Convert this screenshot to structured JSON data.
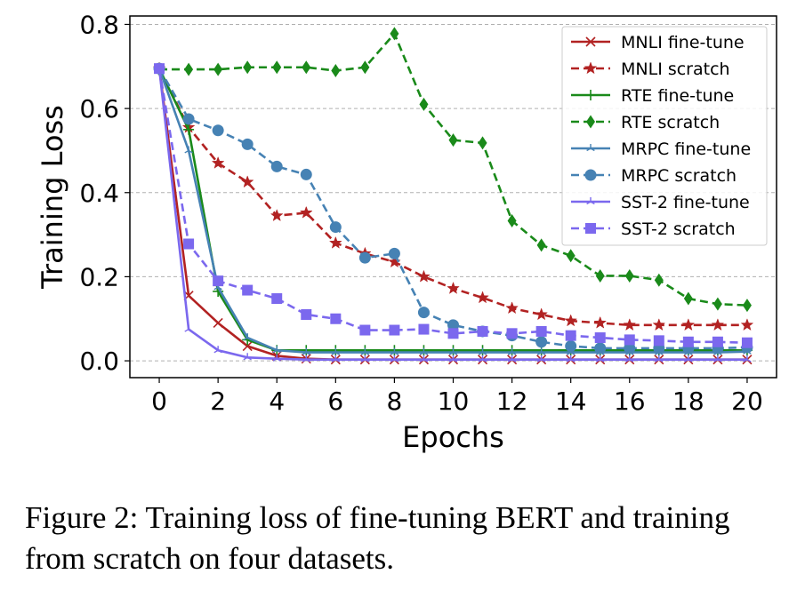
{
  "chart_data": {
    "type": "line",
    "title": "",
    "xlabel": "Epochs",
    "ylabel": "Training Loss",
    "xlim": [
      -1,
      21
    ],
    "ylim": [
      -0.04,
      0.82
    ],
    "xticks": [
      0,
      2,
      4,
      6,
      8,
      10,
      12,
      14,
      16,
      18,
      20
    ],
    "yticks": [
      0.0,
      0.2,
      0.4,
      0.6,
      0.8
    ],
    "ytick_labels": [
      "0.0",
      "0.2",
      "0.4",
      "0.6",
      "0.8"
    ],
    "grid": "horizontal dashed",
    "legend_position": "top-right",
    "x": [
      0,
      1,
      2,
      3,
      4,
      5,
      6,
      7,
      8,
      9,
      10,
      11,
      12,
      13,
      14,
      15,
      16,
      17,
      18,
      19,
      20
    ],
    "series": [
      {
        "name": "MNLI fine-tune",
        "color": "#b22222",
        "dash": "solid",
        "marker": "x",
        "values": [
          0.695,
          0.155,
          0.09,
          0.035,
          0.012,
          0.005,
          0.003,
          0.003,
          0.003,
          0.003,
          0.003,
          0.003,
          0.003,
          0.003,
          0.003,
          0.003,
          0.003,
          0.003,
          0.003,
          0.003,
          0.003
        ]
      },
      {
        "name": "MNLI scratch",
        "color": "#b22222",
        "dash": "dashed",
        "marker": "star",
        "values": [
          0.695,
          0.555,
          0.47,
          0.425,
          0.345,
          0.352,
          0.28,
          0.255,
          0.235,
          0.2,
          0.172,
          0.15,
          0.125,
          0.11,
          0.095,
          0.09,
          0.085,
          0.085,
          0.085,
          0.085,
          0.085
        ]
      },
      {
        "name": "RTE fine-tune",
        "color": "#1a8a1a",
        "dash": "solid",
        "marker": "plus",
        "values": [
          0.695,
          0.55,
          0.165,
          0.05,
          0.025,
          0.025,
          0.025,
          0.025,
          0.025,
          0.025,
          0.025,
          0.025,
          0.025,
          0.025,
          0.025,
          0.025,
          0.025,
          0.025,
          0.025,
          0.025,
          0.025
        ]
      },
      {
        "name": "RTE scratch",
        "color": "#1a8a1a",
        "dash": "dashed",
        "marker": "diamond",
        "values": [
          0.693,
          0.693,
          0.693,
          0.698,
          0.698,
          0.698,
          0.69,
          0.698,
          0.778,
          0.61,
          0.525,
          0.518,
          0.333,
          0.275,
          0.25,
          0.202,
          0.202,
          0.192,
          0.148,
          0.135,
          0.132
        ]
      },
      {
        "name": "MRPC fine-tune",
        "color": "#4682b4",
        "dash": "solid",
        "marker": "tri",
        "values": [
          0.695,
          0.5,
          0.175,
          0.055,
          0.025,
          0.02,
          0.02,
          0.02,
          0.02,
          0.02,
          0.02,
          0.02,
          0.02,
          0.02,
          0.02,
          0.02,
          0.02,
          0.02,
          0.02,
          0.02,
          0.022
        ]
      },
      {
        "name": "MRPC scratch",
        "color": "#4682b4",
        "dash": "dashed",
        "marker": "circle",
        "values": [
          0.695,
          0.575,
          0.548,
          0.515,
          0.462,
          0.443,
          0.318,
          0.245,
          0.255,
          0.115,
          0.085,
          0.07,
          0.06,
          0.045,
          0.035,
          0.03,
          0.03,
          0.03,
          0.03,
          0.03,
          0.032
        ]
      },
      {
        "name": "SST-2 fine-tune",
        "color": "#7b68ee",
        "dash": "solid",
        "marker": "tri",
        "values": [
          0.695,
          0.075,
          0.025,
          0.008,
          0.005,
          0.003,
          0.003,
          0.003,
          0.003,
          0.003,
          0.003,
          0.003,
          0.003,
          0.003,
          0.003,
          0.003,
          0.003,
          0.003,
          0.003,
          0.003,
          0.003
        ]
      },
      {
        "name": "SST-2 scratch",
        "color": "#7b68ee",
        "dash": "dashed",
        "marker": "square",
        "values": [
          0.695,
          0.278,
          0.19,
          0.168,
          0.148,
          0.11,
          0.1,
          0.073,
          0.073,
          0.075,
          0.065,
          0.07,
          0.065,
          0.07,
          0.06,
          0.055,
          0.05,
          0.048,
          0.045,
          0.045,
          0.043
        ]
      }
    ]
  },
  "caption": "Figure 2: Training loss of fine-tuning BERT and training from scratch on four datasets."
}
